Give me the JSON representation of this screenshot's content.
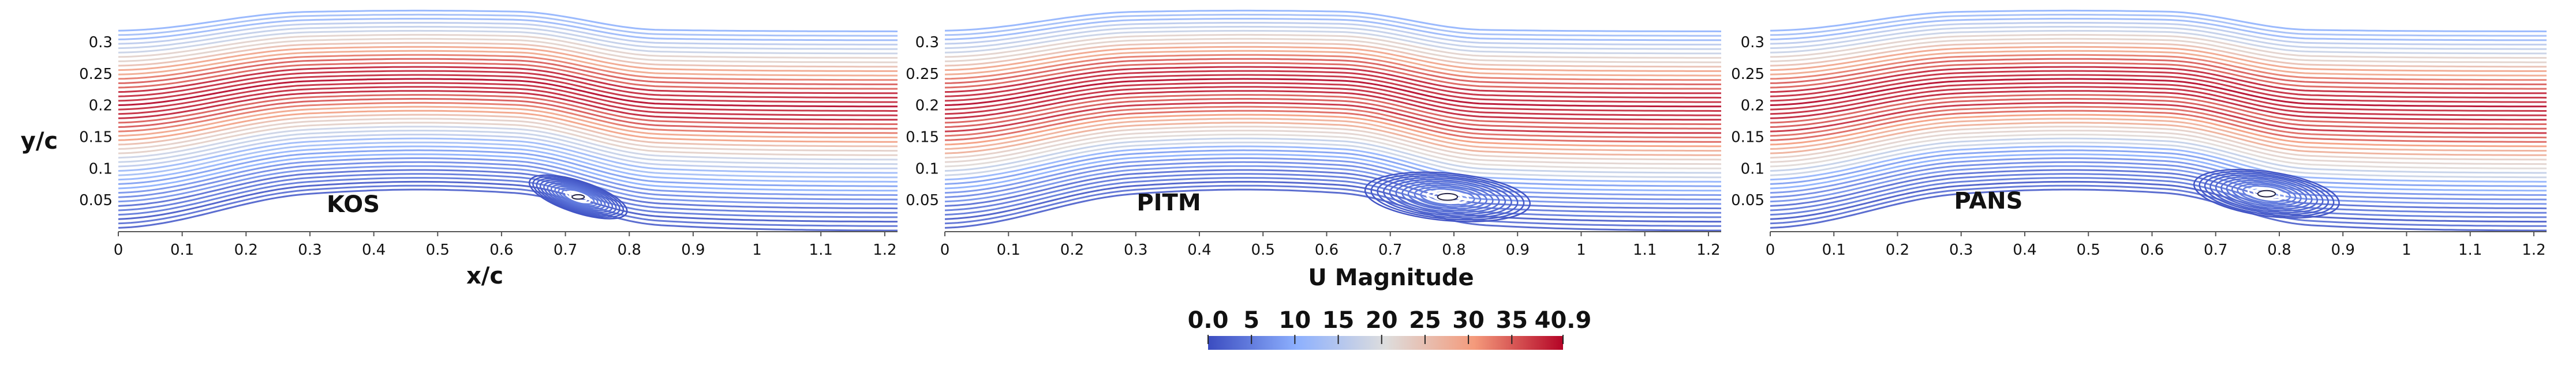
{
  "chart_data": [
    {
      "type": "streamline",
      "title": "KOS",
      "xlabel": "x/c",
      "ylabel": "y/c",
      "xlim": [
        0,
        1.22
      ],
      "ylim": [
        0,
        0.33
      ],
      "xticks": [
        "0",
        "0.1",
        "0.2",
        "0.3",
        "0.4",
        "0.5",
        "0.6",
        "0.7",
        "0.8",
        "0.9",
        "1",
        "1.1",
        "1.2"
      ],
      "yticks": [
        "0.05",
        "0.1",
        "0.15",
        "0.2",
        "0.25",
        "0.3"
      ],
      "xtick_values": [
        0,
        0.1,
        0.2,
        0.3,
        0.4,
        0.5,
        0.6,
        0.7,
        0.8,
        0.9,
        1,
        1.1,
        1.2
      ],
      "ytick_values": [
        0.05,
        0.1,
        0.15,
        0.2,
        0.25,
        0.3
      ],
      "recirculation": {
        "center": [
          0.72,
          0.055
        ],
        "length": 0.16,
        "height": 0.05,
        "tilt_deg": 18
      }
    },
    {
      "type": "streamline",
      "title": "PITM",
      "xlabel": "",
      "ylabel": "",
      "xlim": [
        0,
        1.22
      ],
      "ylim": [
        0,
        0.33
      ],
      "xticks": [
        "0",
        "0.1",
        "0.2",
        "0.3",
        "0.4",
        "0.5",
        "0.6",
        "0.7",
        "0.8",
        "0.9",
        "1",
        "1.1",
        "1.2"
      ],
      "yticks": [
        "0.05",
        "0.1",
        "0.15",
        "0.2",
        "0.25",
        "0.3"
      ],
      "xtick_values": [
        0,
        0.1,
        0.2,
        0.3,
        0.4,
        0.5,
        0.6,
        0.7,
        0.8,
        0.9,
        1,
        1.1,
        1.2
      ],
      "ytick_values": [
        0.05,
        0.1,
        0.15,
        0.2,
        0.25,
        0.3
      ],
      "recirculation": {
        "center": [
          0.79,
          0.055
        ],
        "length": 0.26,
        "height": 0.075,
        "tilt_deg": 5
      }
    },
    {
      "type": "streamline",
      "title": "PANS",
      "xlabel": "",
      "ylabel": "",
      "xlim": [
        0,
        1.22
      ],
      "ylim": [
        0,
        0.33
      ],
      "xticks": [
        "0",
        "0.1",
        "0.2",
        "0.3",
        "0.4",
        "0.5",
        "0.6",
        "0.7",
        "0.8",
        "0.9",
        "1",
        "1.1",
        "1.2"
      ],
      "yticks": [
        "0.05",
        "0.1",
        "0.15",
        "0.2",
        "0.25",
        "0.3"
      ],
      "xtick_values": [
        0,
        0.1,
        0.2,
        0.3,
        0.4,
        0.5,
        0.6,
        0.7,
        0.8,
        0.9,
        1,
        1.1,
        1.2
      ],
      "ytick_values": [
        0.05,
        0.1,
        0.15,
        0.2,
        0.25,
        0.3
      ],
      "recirculation": {
        "center": [
          0.78,
          0.06
        ],
        "length": 0.23,
        "height": 0.07,
        "tilt_deg": 8
      }
    }
  ],
  "colorbar": {
    "title": "U Magnitude",
    "min": 0.0,
    "max": 40.9,
    "tick_values": [
      0,
      5,
      10,
      15,
      20,
      25,
      30,
      35,
      40.9
    ],
    "tick_labels": [
      "0.0",
      "5",
      "10",
      "15",
      "20",
      "25",
      "30",
      "35",
      "40.9"
    ],
    "colors": [
      "#3b4cc0",
      "#8db0fe",
      "#dddddd",
      "#f49a7b",
      "#b40426"
    ]
  }
}
